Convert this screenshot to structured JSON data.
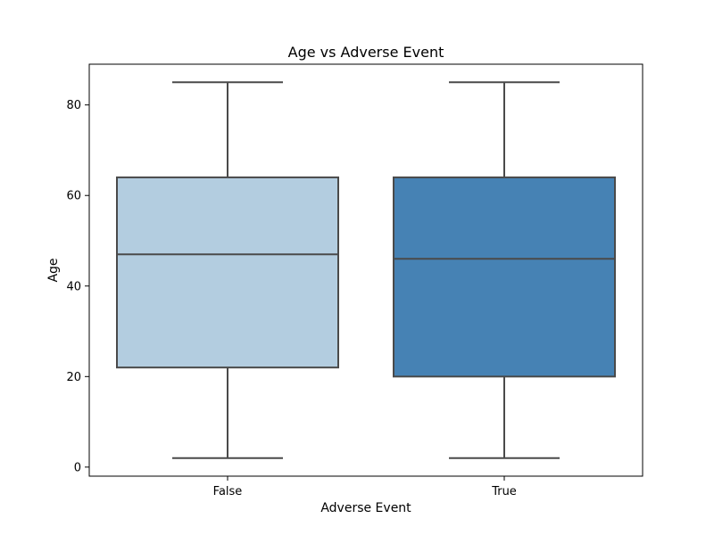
{
  "chart_data": {
    "type": "box",
    "title": "Age vs Adverse Event",
    "xlabel": "Adverse Event",
    "ylabel": "Age",
    "ylim": [
      -2,
      89
    ],
    "yticks": [
      0,
      20,
      40,
      60,
      80
    ],
    "grid": false,
    "categories": [
      "False",
      "True"
    ],
    "boxes": [
      {
        "category": "False",
        "min": 2,
        "q1": 22,
        "median": 47,
        "q3": 64,
        "max": 85,
        "color": "#b3cde0"
      },
      {
        "category": "True",
        "min": 2,
        "q1": 20,
        "median": 46,
        "q3": 64,
        "max": 85,
        "color": "#4682b4"
      }
    ],
    "line_color": "#4a4a4a"
  }
}
